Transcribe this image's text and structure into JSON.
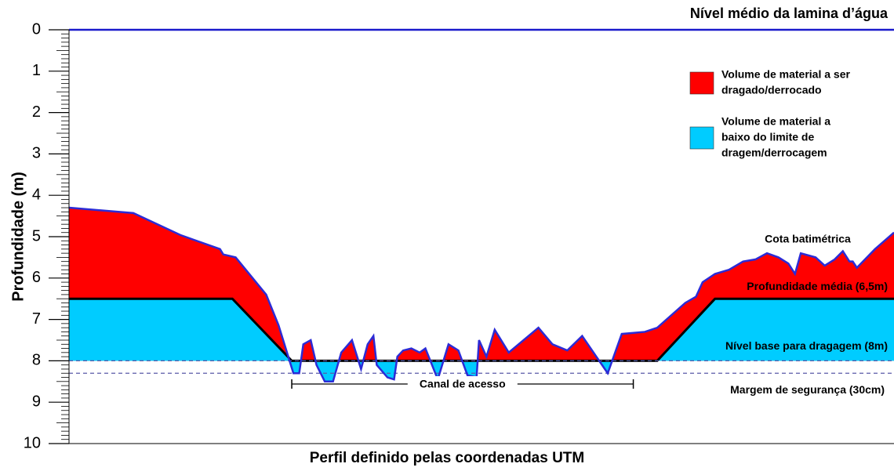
{
  "chart_data": {
    "type": "profile",
    "title": "Nível médio da lamina d’água",
    "ylabel": "Profundidade (m)",
    "xlabel": "Perfil definido pelas coordenadas UTM",
    "ylim": [
      0,
      10
    ],
    "yticks": [
      0,
      1,
      2,
      3,
      4,
      5,
      6,
      7,
      8,
      9,
      10
    ],
    "xlim": [
      0,
      100
    ],
    "profile": {
      "name": "Cota batimétrica",
      "color": "#2b2bd6",
      "x": [
        0,
        7.8,
        13.5,
        18.3,
        18.7,
        20.2,
        23.9,
        25.4,
        27.2,
        27.9,
        28.4,
        29.3,
        30,
        31,
        32,
        33,
        34.3,
        35.4,
        36.2,
        36.9,
        37.3,
        38.6,
        39.4,
        39.8,
        40.5,
        41.5,
        42.5,
        43.2,
        44.7,
        46,
        47.2,
        48.3,
        49.4,
        49.7,
        50.6,
        51.6,
        53.3,
        56.9,
        58.6,
        60.4,
        62.2,
        65.3,
        67,
        69.8,
        71.3,
        74.7,
        76,
        76.8,
        78.3,
        80,
        81.7,
        83.2,
        84.6,
        86,
        87.2,
        88,
        88.7,
        90.5,
        91.6,
        92.8,
        93.8,
        94.6,
        95,
        95.5,
        97.7,
        100
      ],
      "values": [
        4.3,
        4.43,
        4.96,
        5.3,
        5.43,
        5.5,
        6.4,
        7.14,
        8.3,
        8.3,
        7.6,
        7.5,
        8.1,
        8.5,
        8.5,
        7.8,
        7.5,
        8.2,
        7.6,
        7.4,
        8.1,
        8.4,
        8.45,
        7.9,
        7.75,
        7.7,
        7.8,
        7.7,
        8.45,
        7.6,
        7.75,
        8.35,
        8.4,
        7.5,
        7.9,
        7.25,
        7.8,
        7.2,
        7.6,
        7.75,
        7.4,
        8.3,
        7.35,
        7.3,
        7.2,
        6.6,
        6.45,
        6.1,
        5.9,
        5.8,
        5.6,
        5.55,
        5.4,
        5.5,
        5.65,
        5.9,
        5.4,
        5.5,
        5.7,
        5.55,
        5.35,
        5.6,
        5.6,
        5.75,
        5.3,
        4.9
      ]
    },
    "template": {
      "x": [
        0,
        19.8,
        27,
        71.3,
        78.3,
        100
      ],
      "values": [
        6.5,
        6.5,
        8,
        8,
        6.5,
        6.5
      ]
    },
    "water_level": {
      "value": 0,
      "color": "#1a1acc"
    },
    "mean_depth": {
      "label": "Profundidade média (6,5m)",
      "value": 6.5
    },
    "base_level": {
      "label": "Nível base para dragagem (8m)",
      "value": 8
    },
    "safety_margin": {
      "label": "Margem de segurança (30cm)",
      "value": 8.3
    },
    "channel": {
      "label": "Canal de acesso",
      "x": [
        27,
        68.4
      ],
      "depth": 8.56
    },
    "legend": [
      {
        "lines": [
          "Volume de material a ser",
          "dragado/derrocado"
        ],
        "color": "#ff0000"
      },
      {
        "lines": [
          "Volume de material a",
          "baixo do limite de",
          "dragem/derrocagem"
        ],
        "color": "#00ccff"
      }
    ]
  }
}
